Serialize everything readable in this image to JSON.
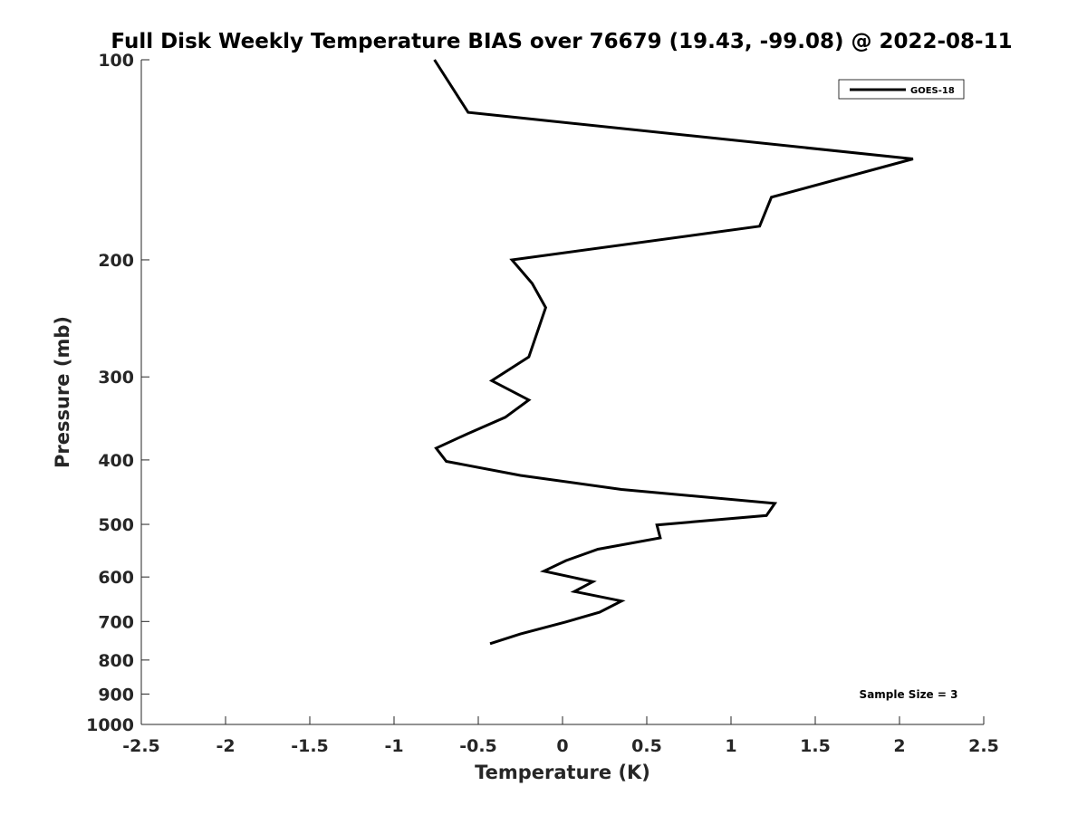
{
  "chart_data": {
    "type": "line",
    "title": "Full Disk Weekly Temperature BIAS over 76679 (19.43, -99.08) @ 2022-08-11",
    "xlabel": "Temperature (K)",
    "ylabel": "Pressure (mb)",
    "xlim": [
      -2.5,
      2.5
    ],
    "ylim": [
      100,
      1000
    ],
    "y_scale": "log",
    "y_reversed": true,
    "x_ticks": [
      "-2.5",
      "-2",
      "-1.5",
      "-1",
      "-0.5",
      "0",
      "0.5",
      "1",
      "1.5",
      "2",
      "2.5"
    ],
    "y_ticks": [
      "100",
      "200",
      "300",
      "400",
      "500",
      "600",
      "700",
      "800",
      "900",
      "1000"
    ],
    "grid": false,
    "legend_position": "top-right",
    "series": [
      {
        "name": "GOES-18",
        "color": "#000000",
        "points": [
          [
            -0.76,
            100
          ],
          [
            -0.56,
            120
          ],
          [
            2.08,
            141
          ],
          [
            1.24,
            161
          ],
          [
            1.17,
            178
          ],
          [
            -0.3,
            200
          ],
          [
            -0.18,
            217
          ],
          [
            -0.1,
            236
          ],
          [
            -0.2,
            280
          ],
          [
            -0.42,
            304
          ],
          [
            -0.2,
            325
          ],
          [
            -0.34,
            345
          ],
          [
            -0.56,
            365
          ],
          [
            -0.75,
            384
          ],
          [
            -0.69,
            402
          ],
          [
            -0.25,
            422
          ],
          [
            0.35,
            443
          ],
          [
            1.26,
            465
          ],
          [
            1.21,
            485
          ],
          [
            0.56,
            501
          ],
          [
            0.58,
            524
          ],
          [
            0.21,
            545
          ],
          [
            0.02,
            567
          ],
          [
            -0.11,
            588
          ],
          [
            0.18,
            610
          ],
          [
            0.07,
            631
          ],
          [
            0.35,
            652
          ],
          [
            0.22,
            678
          ],
          [
            0.02,
            701
          ],
          [
            -0.25,
            731
          ],
          [
            -0.43,
            756
          ]
        ]
      }
    ],
    "annotations": [
      "Sample Size = 3"
    ]
  }
}
